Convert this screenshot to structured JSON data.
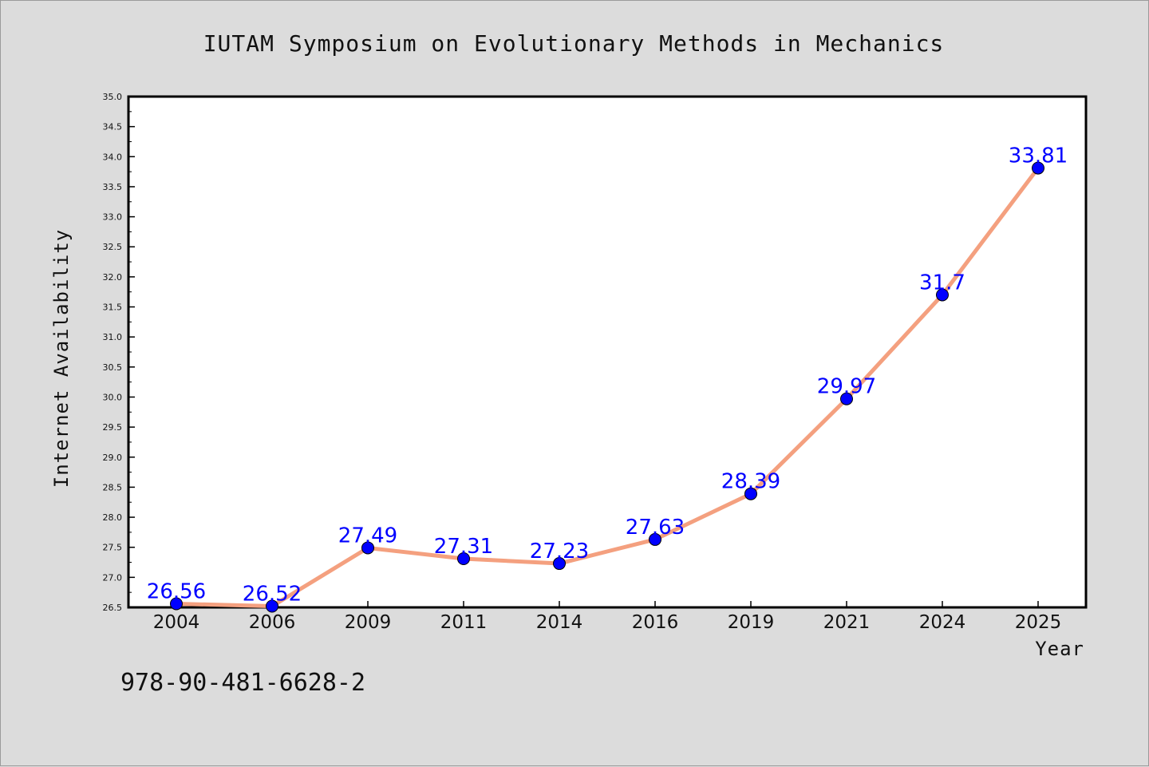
{
  "chart_data": {
    "type": "line",
    "title": "IUTAM Symposium on Evolutionary Methods in Mechanics",
    "xlabel": "Year",
    "ylabel": "Internet Availability",
    "categories": [
      "2004",
      "2006",
      "2009",
      "2011",
      "2014",
      "2016",
      "2019",
      "2021",
      "2024",
      "2025"
    ],
    "values": [
      26.56,
      26.52,
      27.49,
      27.31,
      27.23,
      27.63,
      28.39,
      29.97,
      31.7,
      33.81
    ],
    "data_labels": [
      "26.56",
      "26.52",
      "27.49",
      "27.31",
      "27.23",
      "27.63",
      "28.39",
      "29.97",
      "31.7",
      "33.81"
    ],
    "ylim": [
      26.5,
      35.0
    ],
    "yticks": [
      "26.5",
      "27.0",
      "27.5",
      "28.0",
      "28.5",
      "29.0",
      "29.5",
      "30.0",
      "30.5",
      "31.0",
      "31.5",
      "32.0",
      "32.5",
      "33.0",
      "33.5",
      "34.0",
      "34.5",
      "35.0"
    ],
    "grid": false,
    "line_color": "#f4a07f",
    "marker_color": "#0000ff",
    "label_color": "#0000ff"
  },
  "footnote": "978-90-481-6628-2"
}
